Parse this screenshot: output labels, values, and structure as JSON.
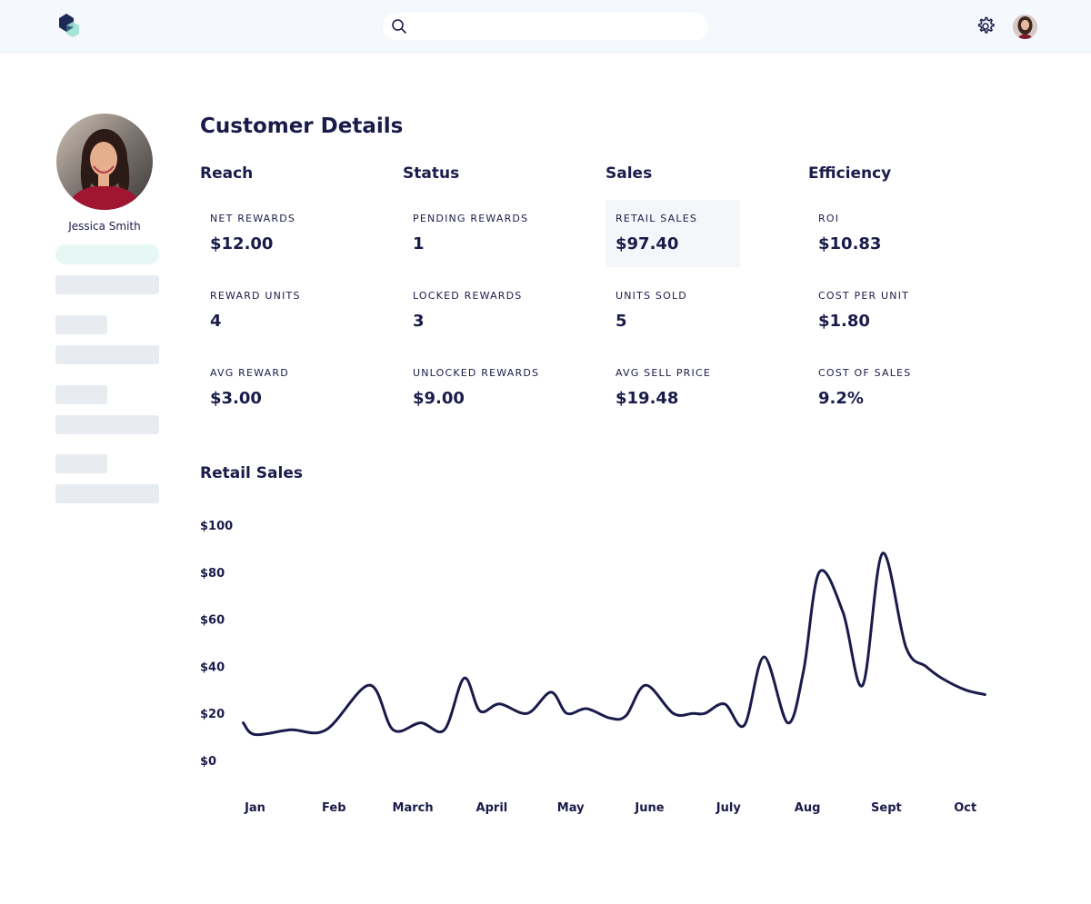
{
  "header": {
    "logo_icon": "cube-logo-icon",
    "search": {
      "placeholder": "",
      "icon": "search-icon"
    },
    "settings_icon": "gear-icon",
    "avatar": "user-avatar"
  },
  "profile": {
    "name": "Jessica Smith"
  },
  "page_title": "Customer Details",
  "columns": [
    {
      "heading": "Reach",
      "metrics": [
        {
          "label": "NET REWARDS",
          "value": "$12.00"
        },
        {
          "label": "REWARD UNITS",
          "value": "4"
        },
        {
          "label": "AVG REWARD",
          "value": "$3.00"
        }
      ]
    },
    {
      "heading": "Status",
      "metrics": [
        {
          "label": "PENDING REWARDS",
          "value": "1"
        },
        {
          "label": "LOCKED REWARDS",
          "value": "3"
        },
        {
          "label": "UNLOCKED REWARDS",
          "value": "$9.00"
        }
      ]
    },
    {
      "heading": "Sales",
      "metrics": [
        {
          "label": "RETAIL SALES",
          "value": "$97.40"
        },
        {
          "label": "UNITS SOLD",
          "value": "5"
        },
        {
          "label": "AVG SELL PRICE",
          "value": "$19.48"
        }
      ]
    },
    {
      "heading": "Efficiency",
      "metrics": [
        {
          "label": "ROI",
          "value": "$10.83"
        },
        {
          "label": "COST PER UNIT",
          "value": "$1.80"
        },
        {
          "label": "COST OF SALES",
          "value": "9.2%"
        }
      ]
    }
  ],
  "colors": {
    "navy": "#1b1b4b",
    "topbar_bg": "#f5f8fd",
    "highlight_bg": "#f4f6f9",
    "skeleton": "#e8ecf1",
    "skeleton_accent": "#e7f7f4"
  },
  "chart_title": "Retail Sales",
  "chart_data": {
    "type": "line",
    "title": "Retail Sales",
    "xlabel": "",
    "ylabel": "",
    "categories": [
      "Jan",
      "Feb",
      "March",
      "April",
      "May",
      "June",
      "July",
      "Aug",
      "Sept",
      "Oct"
    ],
    "yticks": [
      "$0",
      "$20",
      "$40",
      "$60",
      "$80",
      "$100"
    ],
    "ylim": [
      0,
      100
    ],
    "grid": false,
    "series": [
      {
        "x": [
          -0.15,
          0.0,
          0.45,
          0.9,
          1.45,
          1.75,
          2.1,
          2.4,
          2.65,
          2.85,
          3.1,
          3.45,
          3.75,
          3.95,
          4.2,
          4.5,
          4.7,
          4.95,
          5.3,
          5.55,
          5.7,
          5.95,
          6.2,
          6.45,
          6.75,
          6.95,
          7.15,
          7.45,
          7.7,
          7.95,
          8.25,
          8.5,
          8.7,
          9.0,
          9.25
        ],
        "values": [
          16,
          11,
          13,
          13,
          32,
          13,
          16,
          13,
          35,
          21,
          24,
          20,
          29,
          20,
          22,
          18,
          19,
          32,
          20,
          20,
          20,
          24,
          15,
          44,
          16,
          38,
          80,
          63,
          32,
          88,
          48,
          40,
          35,
          30,
          28
        ]
      }
    ]
  }
}
